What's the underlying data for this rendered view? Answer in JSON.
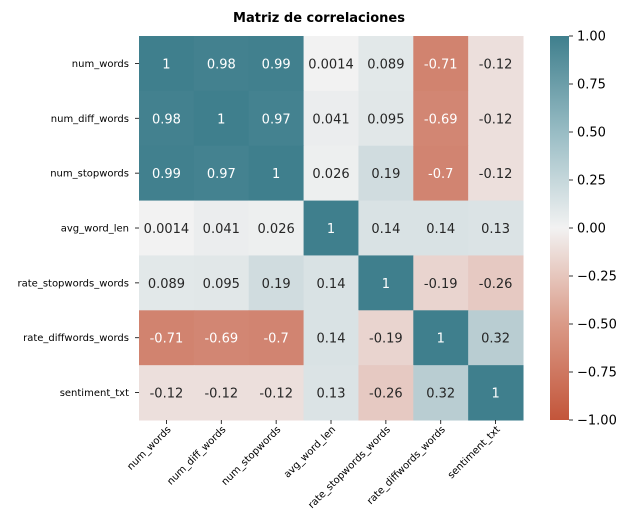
{
  "chart_data": {
    "type": "heatmap",
    "title": "Matriz de correlaciones",
    "xlabel": "",
    "ylabel": "",
    "variables": [
      "num_words",
      "num_diff_words",
      "num_stopwords",
      "avg_word_len",
      "rate_stopwords_words",
      "rate_diffwords_words",
      "sentiment_txt"
    ],
    "matrix": [
      [
        1,
        0.98,
        0.99,
        0.0014,
        0.089,
        -0.71,
        -0.12
      ],
      [
        0.98,
        1,
        0.97,
        0.041,
        0.095,
        -0.69,
        -0.12
      ],
      [
        0.99,
        0.97,
        1,
        0.026,
        0.19,
        -0.7,
        -0.12
      ],
      [
        0.0014,
        0.041,
        0.026,
        1,
        0.14,
        0.14,
        0.13
      ],
      [
        0.089,
        0.095,
        0.19,
        0.14,
        1,
        -0.19,
        -0.26
      ],
      [
        -0.71,
        -0.69,
        -0.7,
        0.14,
        -0.19,
        1,
        0.32
      ],
      [
        -0.12,
        -0.12,
        -0.12,
        0.13,
        -0.26,
        0.32,
        1
      ]
    ],
    "cell_labels": [
      [
        "1",
        "0.98",
        "0.99",
        "0.0014",
        "0.089",
        "-0.71",
        "-0.12"
      ],
      [
        "0.98",
        "1",
        "0.97",
        "0.041",
        "0.095",
        "-0.69",
        "-0.12"
      ],
      [
        "0.99",
        "0.97",
        "1",
        "0.026",
        "0.19",
        "-0.7",
        "-0.12"
      ],
      [
        "0.0014",
        "0.041",
        "0.026",
        "1",
        "0.14",
        "0.14",
        "0.13"
      ],
      [
        "0.089",
        "0.095",
        "0.19",
        "0.14",
        "1",
        "-0.19",
        "-0.26"
      ],
      [
        "-0.71",
        "-0.69",
        "-0.7",
        "0.14",
        "-0.19",
        "1",
        "0.32"
      ],
      [
        "-0.12",
        "-0.12",
        "-0.12",
        "0.13",
        "-0.26",
        "0.32",
        "1"
      ]
    ],
    "colorbar": {
      "range": [
        -1,
        1
      ],
      "ticks": [
        -1,
        -0.75,
        -0.5,
        -0.25,
        0,
        0.25,
        0.5,
        0.75,
        1
      ],
      "tick_labels": [
        "−1.00",
        "−0.75",
        "−0.50",
        "−0.25",
        "0.00",
        "0.25",
        "0.50",
        "0.75",
        "1.00"
      ]
    },
    "colors": {
      "negative": "#c3553a",
      "center": "#f2f2f2",
      "positive": "#3f7f8d",
      "text_dark": "#262626",
      "text_light": "#ffffff"
    }
  }
}
